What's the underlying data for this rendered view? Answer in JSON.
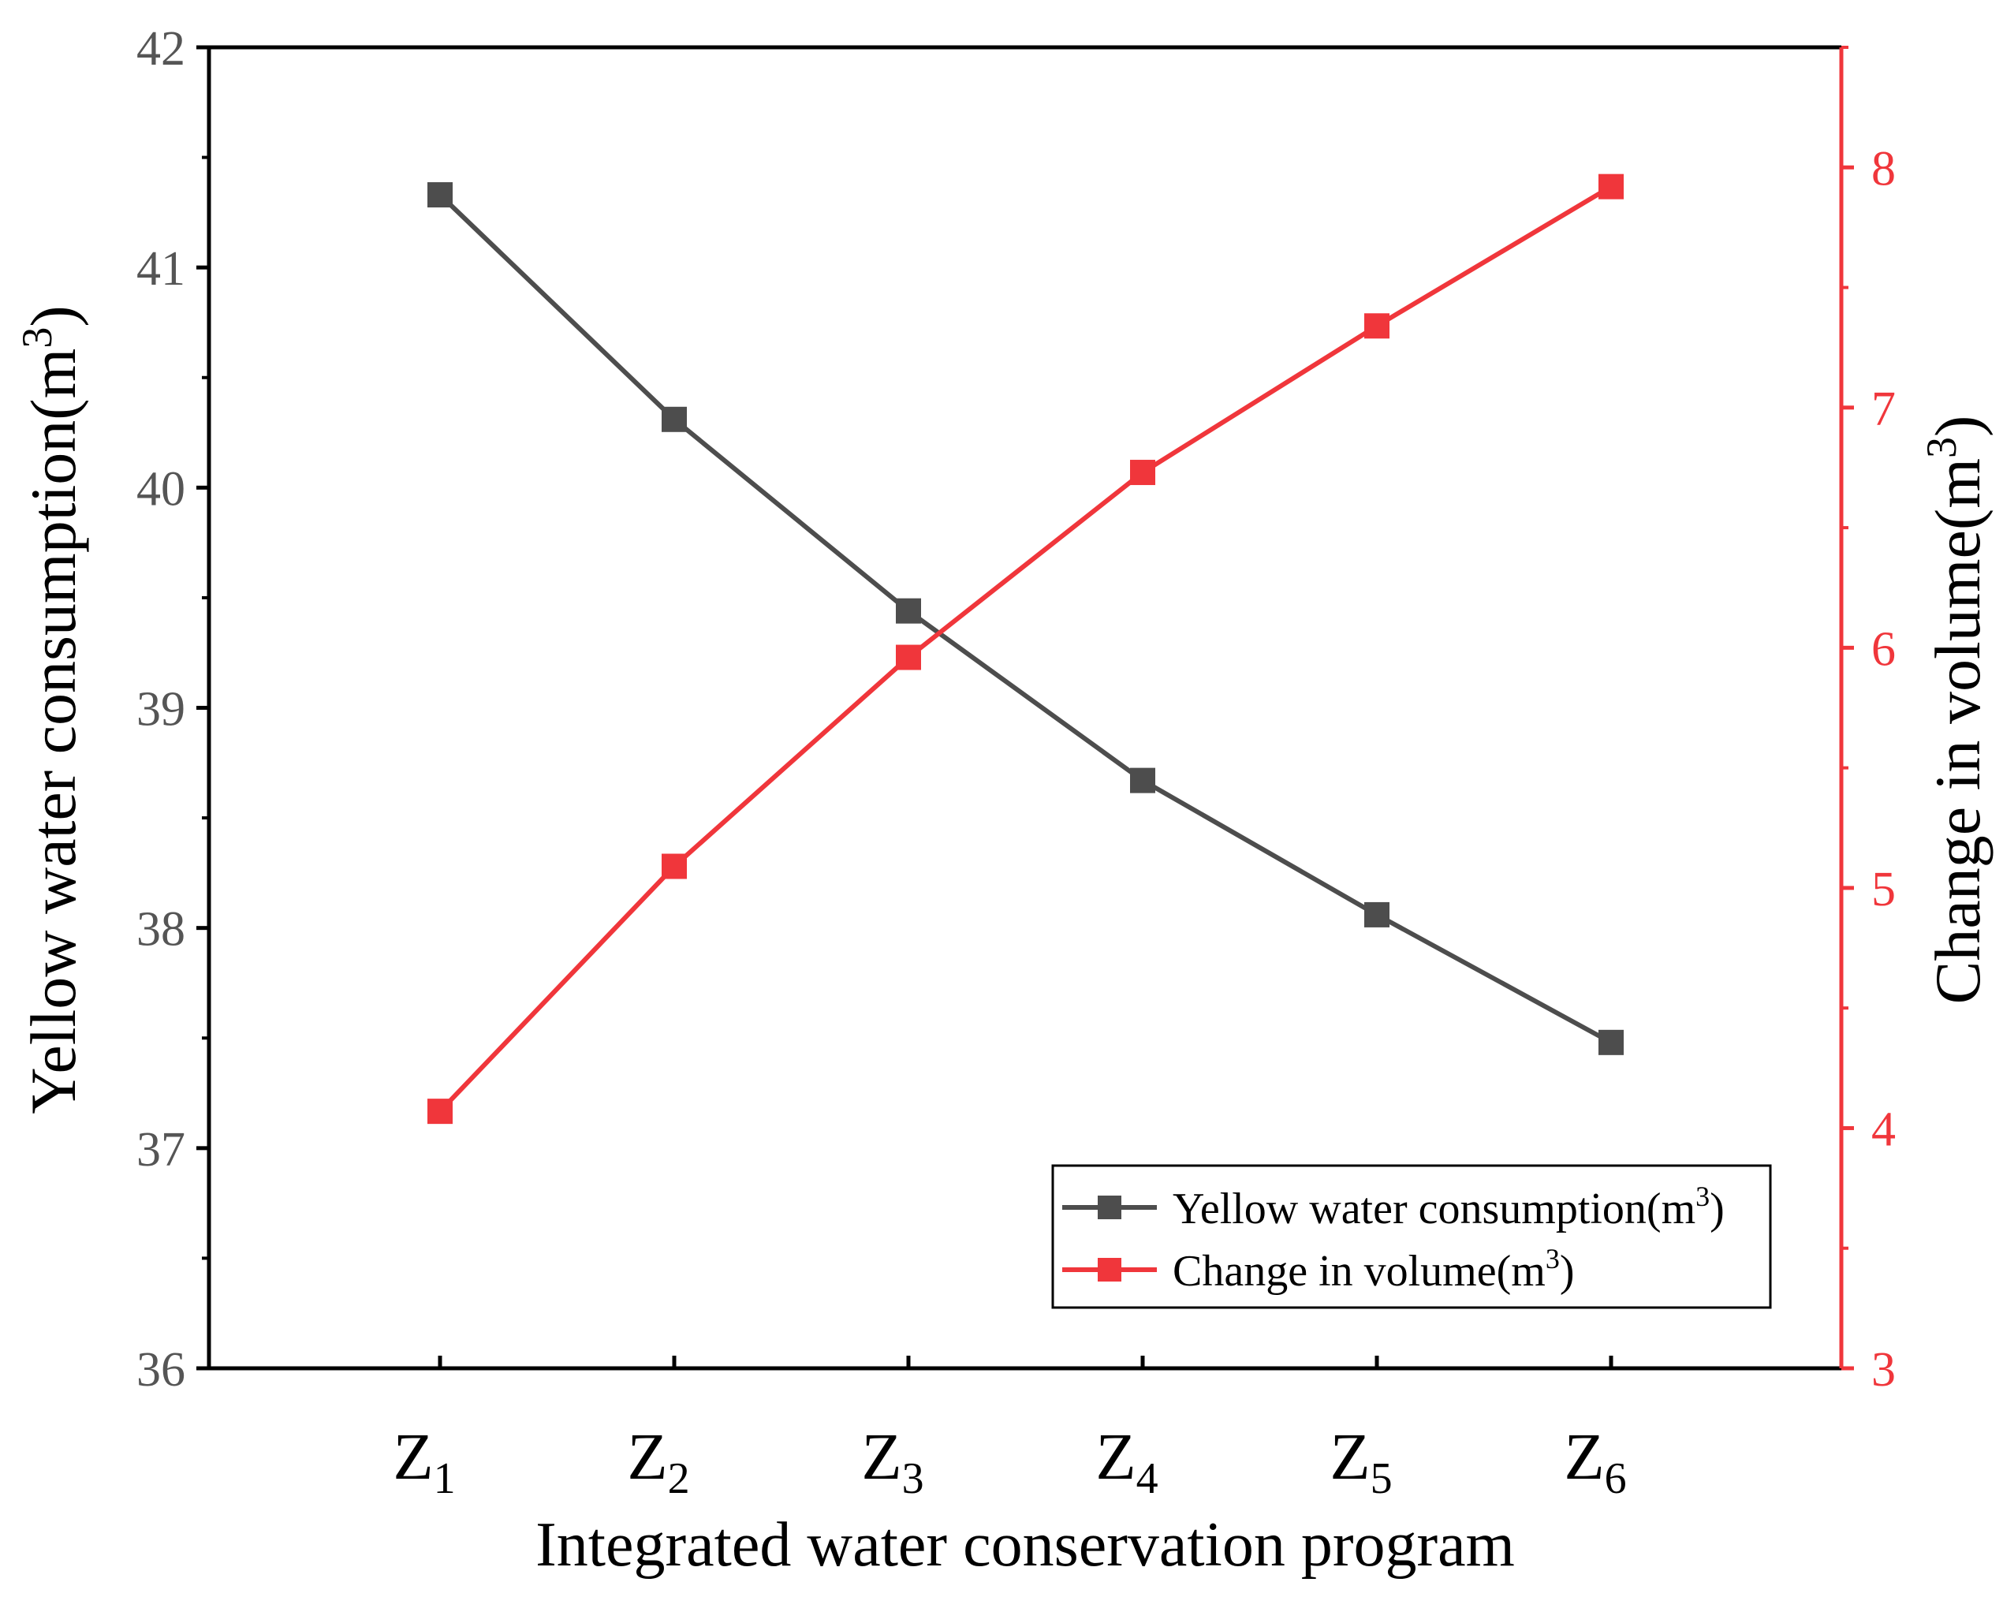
{
  "chart_data": {
    "type": "line",
    "title": "",
    "xlabel": "Integrated water conservation program",
    "categories": [
      {
        "base": "Z",
        "sub": "1"
      },
      {
        "base": "Z",
        "sub": "2"
      },
      {
        "base": "Z",
        "sub": "3"
      },
      {
        "base": "Z",
        "sub": "4"
      },
      {
        "base": "Z",
        "sub": "5"
      },
      {
        "base": "Z",
        "sub": "6"
      }
    ],
    "y_left": {
      "label": "Yellow water consumption(m",
      "label_sup": "3",
      "label_end": ")",
      "ylim": [
        36,
        42
      ],
      "ticks": [
        "36",
        "37",
        "38",
        "39",
        "40",
        "41",
        "42"
      ]
    },
    "y_right": {
      "label": "Change in volume(m",
      "label_sup": "3",
      "label_end": ")",
      "ylim": [
        3,
        8.5
      ],
      "ticks": [
        "3",
        "4",
        "5",
        "6",
        "7",
        "8"
      ]
    },
    "series": [
      {
        "name": "Yellow water consumption(m",
        "name_sup": "3",
        "name_end": ")",
        "axis": "left",
        "color": "#4d4d4d",
        "values": [
          41.33,
          40.31,
          39.44,
          38.67,
          38.06,
          37.48
        ]
      },
      {
        "name": "Change in volume(m",
        "name_sup": "3",
        "name_end": ")",
        "axis": "right",
        "color": "#f0363b",
        "values": [
          4.07,
          5.09,
          5.96,
          6.73,
          7.34,
          7.92
        ]
      }
    ],
    "legend_position": "bottom-right"
  },
  "colors": {
    "axis_left": "#000000",
    "axis_right": "#f0363b",
    "tick_label_left": "#555555"
  }
}
